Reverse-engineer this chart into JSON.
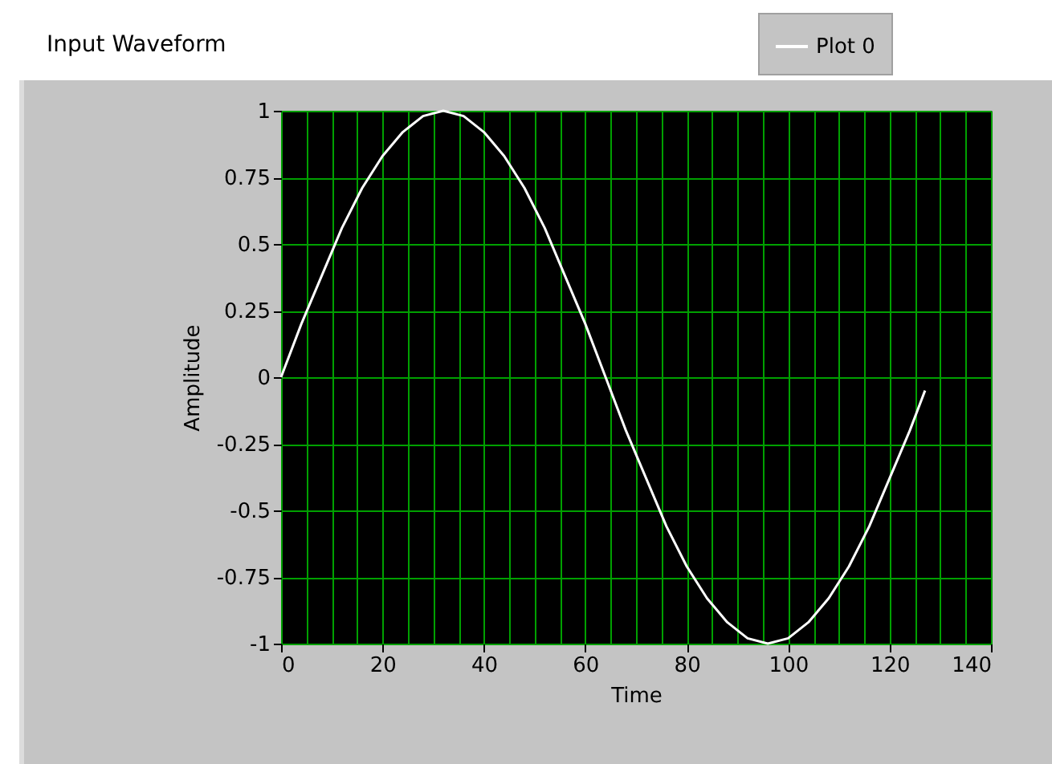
{
  "chart_data": {
    "type": "line",
    "title": "Input Waveform",
    "xlabel": "Time",
    "ylabel": "Amplitude",
    "x": [
      0,
      4,
      8,
      12,
      16,
      20,
      24,
      28,
      32,
      36,
      40,
      44,
      48,
      52,
      56,
      60,
      64,
      68,
      72,
      76,
      80,
      84,
      88,
      92,
      96,
      100,
      104,
      108,
      112,
      116,
      120,
      124,
      127
    ],
    "series": [
      {
        "name": "Plot 0",
        "color": "#ffffff",
        "values": [
          0,
          0.2,
          0.38,
          0.56,
          0.71,
          0.83,
          0.92,
          0.98,
          1,
          0.98,
          0.92,
          0.83,
          0.71,
          0.56,
          0.38,
          0.2,
          0,
          -0.2,
          -0.38,
          -0.56,
          -0.71,
          -0.83,
          -0.92,
          -0.98,
          -1,
          -0.98,
          -0.92,
          -0.83,
          -0.71,
          -0.56,
          -0.38,
          -0.2,
          -0.05
        ]
      }
    ],
    "xlim": [
      0,
      140
    ],
    "xticks": [
      0,
      {
        "value": 5,
        "label": null
      },
      {
        "value": 10,
        "label": null
      },
      {
        "value": 15,
        "label": null
      },
      20,
      {
        "value": 25,
        "label": null
      },
      {
        "value": 30,
        "label": null
      },
      {
        "value": 35,
        "label": null
      },
      40,
      {
        "value": 45,
        "label": null
      },
      {
        "value": 50,
        "label": null
      },
      {
        "value": 55,
        "label": null
      },
      60,
      {
        "value": 65,
        "label": null
      },
      {
        "value": 70,
        "label": null
      },
      {
        "value": 75,
        "label": null
      },
      80,
      {
        "value": 85,
        "label": null
      },
      {
        "value": 90,
        "label": null
      },
      {
        "value": 95,
        "label": null
      },
      100,
      {
        "value": 105,
        "label": null
      },
      {
        "value": 110,
        "label": null
      },
      {
        "value": 115,
        "label": null
      },
      120,
      {
        "value": 125,
        "label": null
      },
      {
        "value": 130,
        "label": null
      },
      {
        "value": 135,
        "label": null
      },
      140
    ],
    "ylim": [
      -1,
      1
    ],
    "yticks": [
      -1,
      -0.75,
      -0.5,
      -0.25,
      0,
      0.25,
      0.5,
      0.75,
      1
    ],
    "grid": true,
    "legend": "top right",
    "marker": "none",
    "line_style": "solid"
  }
}
